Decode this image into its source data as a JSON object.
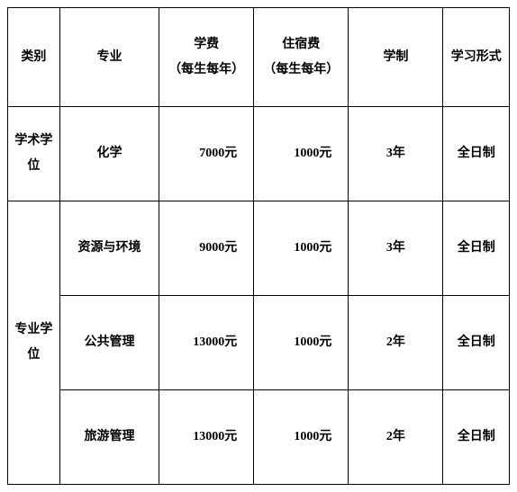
{
  "headers": {
    "category": "类别",
    "major": "专业",
    "tuition_label": "学费",
    "tuition_sub": "（每生每年）",
    "dorm_label": "住宿费",
    "dorm_sub": "（每生每年）",
    "duration": "学制",
    "mode": "学习形式"
  },
  "categories": [
    {
      "name": "学术学位",
      "rowspan": 1
    },
    {
      "name": "专业学位",
      "rowspan": 3
    }
  ],
  "rows": [
    {
      "major": "化学",
      "tuition": "7000元",
      "dorm": "1000元",
      "duration": "3年",
      "mode": "全日制"
    },
    {
      "major": "资源与环境",
      "tuition": "9000元",
      "dorm": "1000元",
      "duration": "3年",
      "mode": "全日制"
    },
    {
      "major": "公共管理",
      "tuition": "13000元",
      "dorm": "1000元",
      "duration": "2年",
      "mode": "全日制"
    },
    {
      "major": "旅游管理",
      "tuition": "13000元",
      "dorm": "1000元",
      "duration": "2年",
      "mode": "全日制"
    }
  ],
  "style": {
    "border_color": "#000000",
    "background_color": "#ffffff",
    "text_color": "#000000",
    "font_weight": "bold",
    "font_size_pt": 10
  }
}
